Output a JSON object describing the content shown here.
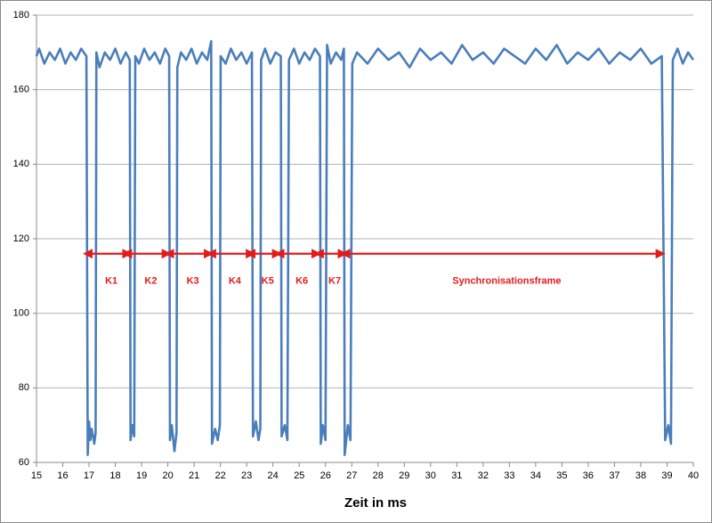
{
  "chart_data": {
    "type": "line",
    "x_label": "Zeit in ms",
    "xlim": [
      15,
      40
    ],
    "xticks": [
      15,
      16,
      17,
      18,
      19,
      20,
      21,
      22,
      23,
      24,
      25,
      26,
      27,
      28,
      29,
      30,
      31,
      32,
      33,
      34,
      35,
      36,
      37,
      38,
      39,
      40
    ],
    "ylim": [
      60,
      180
    ],
    "yticks": [
      60,
      80,
      100,
      120,
      140,
      160,
      180
    ],
    "grid": true,
    "series": [
      {
        "color": "#4a7ebb",
        "x": [
          15,
          15.1,
          15.3,
          15.5,
          15.7,
          15.9,
          16.1,
          16.3,
          16.5,
          16.7,
          16.9,
          16.95,
          17,
          17.05,
          17.1,
          17.2,
          17.25,
          17.28,
          17.4,
          17.6,
          17.8,
          18,
          18.2,
          18.4,
          18.55,
          18.58,
          18.65,
          18.72,
          18.76,
          18.9,
          19.1,
          19.3,
          19.5,
          19.7,
          19.9,
          20.05,
          20.08,
          20.15,
          20.25,
          20.33,
          20.36,
          20.5,
          20.7,
          20.9,
          21.1,
          21.3,
          21.5,
          21.65,
          21.68,
          21.8,
          21.9,
          21.98,
          22.01,
          22.2,
          22.4,
          22.6,
          22.8,
          23,
          23.2,
          23.24,
          23.35,
          23.45,
          23.52,
          23.55,
          23.7,
          23.9,
          24.1,
          24.3,
          24.33,
          24.45,
          24.55,
          24.61,
          24.8,
          25,
          25.2,
          25.4,
          25.6,
          25.79,
          25.82,
          25.9,
          26,
          26.06,
          26.2,
          26.4,
          26.6,
          26.7,
          26.73,
          26.85,
          26.95,
          27.02,
          27.2,
          27.6,
          28,
          28.4,
          28.8,
          29.2,
          29.6,
          30,
          30.4,
          30.8,
          31.2,
          31.6,
          32,
          32.4,
          32.8,
          33.2,
          33.6,
          34,
          34.4,
          34.8,
          35.2,
          35.6,
          36,
          36.4,
          36.8,
          37.2,
          37.6,
          38,
          38.4,
          38.8,
          38.93,
          39.05,
          39.15,
          39.22,
          39.4,
          39.6,
          39.8,
          40
        ],
        "values": [
          169,
          171,
          167,
          170,
          168,
          171,
          167,
          170,
          168,
          171,
          169,
          62,
          71,
          66,
          69,
          65,
          68,
          170,
          166,
          170,
          168,
          171,
          167,
          170,
          168,
          66,
          70,
          67,
          169,
          167,
          171,
          168,
          170,
          167,
          171,
          169,
          66,
          70,
          63,
          68,
          166,
          170,
          168,
          171,
          167,
          170,
          168,
          173,
          65,
          69,
          66,
          70,
          169,
          167,
          171,
          168,
          170,
          167,
          170,
          67,
          71,
          66,
          69,
          168,
          171,
          167,
          170,
          169,
          67,
          70,
          66,
          168,
          171,
          167,
          170,
          168,
          171,
          169,
          65,
          70,
          66,
          172,
          167,
          170,
          168,
          171,
          62,
          70,
          66,
          167,
          170,
          167,
          171,
          168,
          170,
          166,
          171,
          168,
          170,
          167,
          172,
          168,
          170,
          167,
          171,
          169,
          167,
          171,
          168,
          172,
          167,
          170,
          168,
          171,
          167,
          170,
          168,
          171,
          167,
          169,
          66,
          70,
          65,
          168,
          171,
          167,
          170,
          168
        ]
      }
    ],
    "annotations": [
      {
        "text": "K1",
        "x": [
          17.1,
          18.6
        ],
        "y": 116
      },
      {
        "text": "K2",
        "x": [
          18.6,
          20.1
        ],
        "y": 116
      },
      {
        "text": "K3",
        "x": [
          20.2,
          21.7
        ],
        "y": 116
      },
      {
        "text": "K4",
        "x": [
          21.8,
          23.3
        ],
        "y": 116
      },
      {
        "text": "K5",
        "x": [
          23.3,
          24.3
        ],
        "y": 116
      },
      {
        "text": "K6",
        "x": [
          24.4,
          25.8
        ],
        "y": 116
      },
      {
        "text": "K7",
        "x": [
          25.9,
          26.8
        ],
        "y": 116
      },
      {
        "text": "Synchronisationsframe",
        "x": [
          26.9,
          38.9
        ],
        "y": 116
      }
    ],
    "annotation_color": "#e31b1b"
  }
}
